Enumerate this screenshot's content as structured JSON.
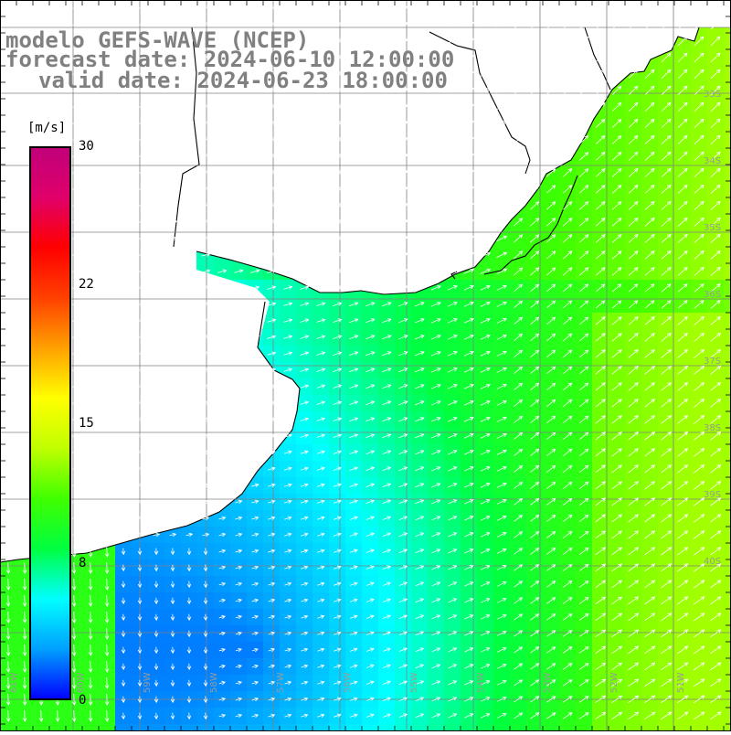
{
  "title": {
    "model": "modelo GEFS-WAVE (NCEP)",
    "forecast": "forecast date: 2024-06-10 12:00:00",
    "valid": "valid date: 2024-06-23 18:00:00"
  },
  "colorbar": {
    "unit": "[m/s]",
    "ticks": [
      "30",
      "22",
      "15",
      "8",
      "0"
    ],
    "tick_values": [
      30,
      22,
      15,
      8,
      0
    ],
    "range": [
      0,
      30
    ],
    "colors": [
      "#0000ff",
      "#00a0ff",
      "#00ffff",
      "#00ff40",
      "#40ff00",
      "#c0ff00",
      "#ffff00",
      "#ffa000",
      "#ff4000",
      "#ff0000",
      "#e0006a",
      "#c0007a"
    ]
  },
  "map": {
    "variable": "wind speed",
    "lat_labels": [
      "33S",
      "34S",
      "35S",
      "36S",
      "37S",
      "38S",
      "39S",
      "40S"
    ],
    "lon_labels": [
      "61W",
      "60W",
      "59W",
      "58W",
      "57W",
      "56W",
      "55W",
      "54W",
      "53W",
      "52W",
      "51W"
    ],
    "land_color": "#ffffff",
    "grid_color": "#808080",
    "coast_color": "#000000"
  }
}
